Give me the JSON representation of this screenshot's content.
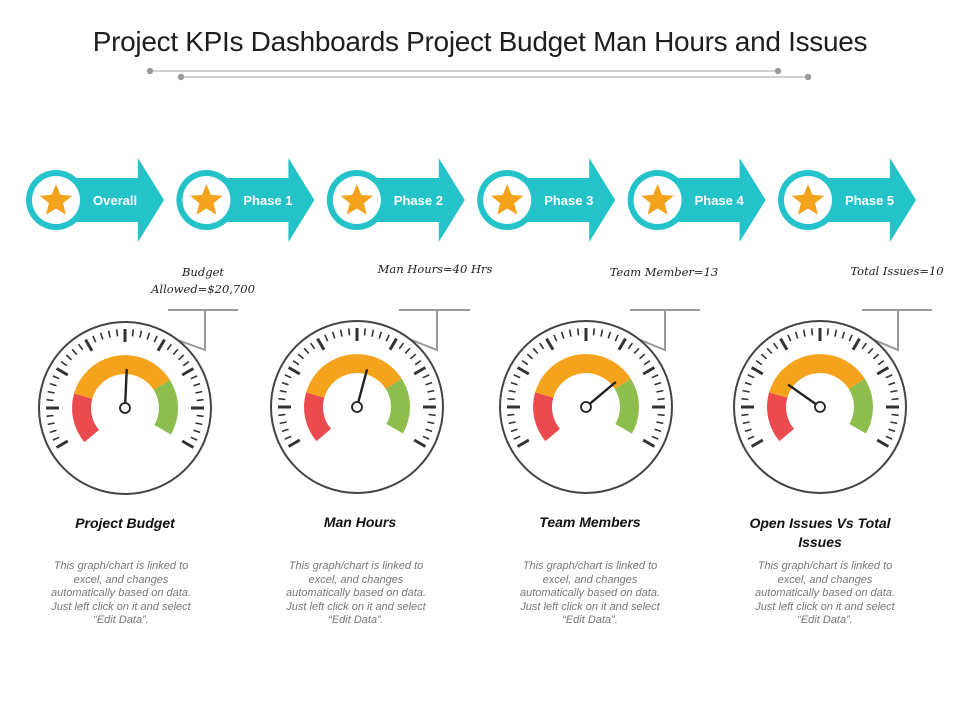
{
  "title": "Project KPIs Dashboards Project Budget Man Hours and Issues",
  "colors": {
    "teal": "#24c3ca",
    "star": "#f5a31c",
    "gauge_red": "#eb4b4f",
    "gauge_orange": "#f5a31c",
    "gauge_green": "#8dbd4c",
    "dial_stroke": "#444444"
  },
  "phases": [
    {
      "label": "Overall",
      "icon": "star-icon"
    },
    {
      "label": "Phase 1",
      "icon": "star-icon"
    },
    {
      "label": "Phase 2",
      "icon": "star-icon"
    },
    {
      "label": "Phase 3",
      "icon": "star-icon"
    },
    {
      "label": "Phase 4",
      "icon": "star-icon"
    },
    {
      "label": "Phase 5",
      "icon": "star-icon"
    }
  ],
  "gauges": [
    {
      "callout": "Budget Allowed=$20,700",
      "title": "Project Budget",
      "description": "This graph/chart is linked to excel, and changes automatically based on data. Just left click on it and select “Edit Data”.",
      "needle_fraction": 0.53
    },
    {
      "callout": "Man Hours=40 Hrs",
      "title": "Man Hours",
      "description": "This graph/chart is linked to excel, and changes automatically based on data. Just left click on it and select “Edit Data”.",
      "needle_fraction": 0.58
    },
    {
      "callout": "Team Member=13",
      "title": "Team Members",
      "description": "This graph/chart is linked to excel, and changes automatically based on data. Just left click on it and select “Edit Data”.",
      "needle_fraction": 0.72
    },
    {
      "callout": "Total Issues=10",
      "title": "Open Issues Vs Total Issues",
      "description": "This graph/chart is linked to excel, and changes automatically based on data. Just left click on it and select “Edit Data”.",
      "needle_fraction": 0.3
    }
  ]
}
